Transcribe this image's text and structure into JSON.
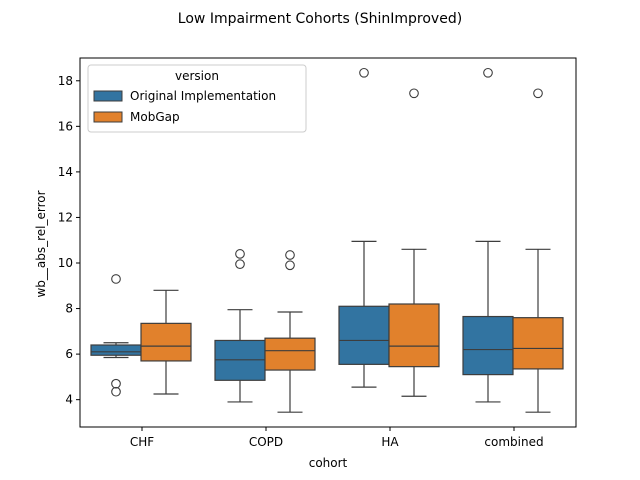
{
  "chart_data": {
    "type": "box",
    "title": "Low Impairment Cohorts (ShinImproved)",
    "xlabel": "cohort",
    "ylabel": "wb__abs_rel_error",
    "categories": [
      "CHF",
      "COPD",
      "HA",
      "combined"
    ],
    "ylim": [
      2.8,
      19.0
    ],
    "yticks": [
      4,
      6,
      8,
      10,
      12,
      14,
      16,
      18
    ],
    "grid": false,
    "legend": {
      "title": "version",
      "placement": "top-left"
    },
    "series": [
      {
        "name": "Original Implementation",
        "color": "#3274a1",
        "boxes": [
          {
            "whisker_low": 5.85,
            "q1": 5.95,
            "median": 6.1,
            "q3": 6.4,
            "whisker_high": 6.5,
            "outliers": [
              9.3,
              4.7,
              4.35
            ]
          },
          {
            "whisker_low": 3.9,
            "q1": 4.85,
            "median": 5.75,
            "q3": 6.6,
            "whisker_high": 7.95,
            "outliers": [
              10.4,
              9.95
            ]
          },
          {
            "whisker_low": 4.55,
            "q1": 5.55,
            "median": 6.6,
            "q3": 8.1,
            "whisker_high": 10.95,
            "outliers": [
              18.35
            ]
          },
          {
            "whisker_low": 3.9,
            "q1": 5.1,
            "median": 6.2,
            "q3": 7.65,
            "whisker_high": 10.95,
            "outliers": [
              18.35
            ]
          }
        ]
      },
      {
        "name": "MobGap",
        "color": "#e1812c",
        "boxes": [
          {
            "whisker_low": 4.25,
            "q1": 5.7,
            "median": 6.35,
            "q3": 7.35,
            "whisker_high": 8.8,
            "outliers": []
          },
          {
            "whisker_low": 3.45,
            "q1": 5.3,
            "median": 6.15,
            "q3": 6.7,
            "whisker_high": 7.85,
            "outliers": [
              10.35,
              9.9
            ]
          },
          {
            "whisker_low": 4.15,
            "q1": 5.45,
            "median": 6.35,
            "q3": 8.2,
            "whisker_high": 10.6,
            "outliers": [
              17.45
            ]
          },
          {
            "whisker_low": 3.45,
            "q1": 5.35,
            "median": 6.25,
            "q3": 7.6,
            "whisker_high": 10.6,
            "outliers": [
              17.45
            ]
          }
        ]
      }
    ]
  }
}
